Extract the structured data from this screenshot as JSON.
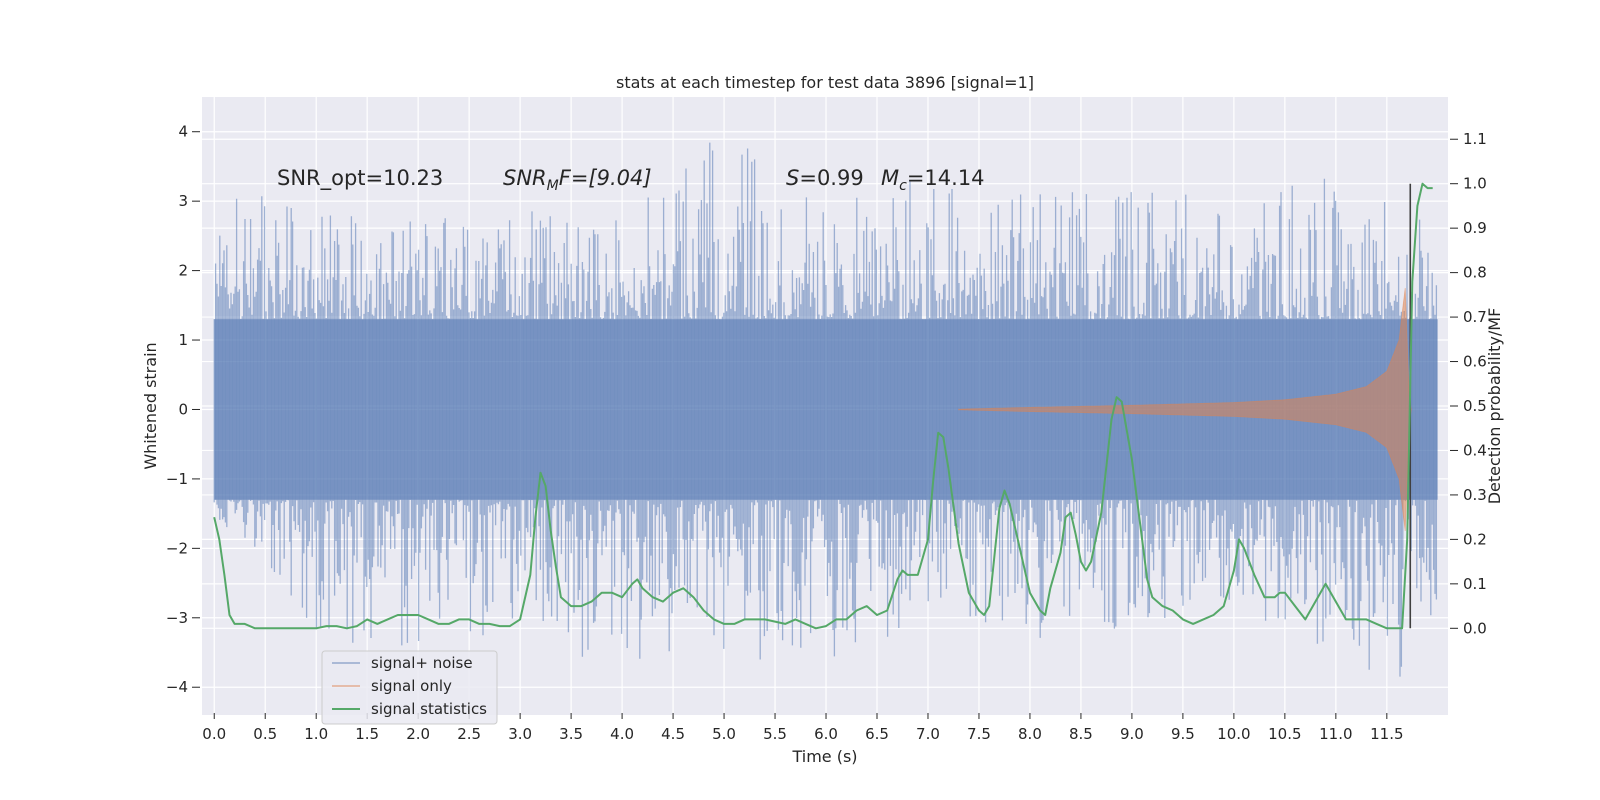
{
  "chart_data": {
    "type": "line",
    "title": "stats at each timestep for test data 3896 [signal=1]",
    "xlabel": "Time (s)",
    "ylabel": "Whitened strain",
    "y2label": "Detection probability/MF",
    "xlim": [
      -0.12,
      12.1
    ],
    "ylim": [
      -4.4,
      4.5
    ],
    "y2lim": [
      -0.195,
      1.195
    ],
    "x_ticks": [
      0.0,
      0.5,
      1.0,
      1.5,
      2.0,
      2.5,
      3.0,
      3.5,
      4.0,
      4.5,
      5.0,
      5.5,
      6.0,
      6.5,
      7.0,
      7.5,
      8.0,
      8.5,
      9.0,
      9.5,
      10.0,
      10.5,
      11.0,
      11.5
    ],
    "x_tick_labels": [
      "0.0",
      "0.5",
      "1.0",
      "1.5",
      "2.0",
      "2.5",
      "3.0",
      "3.5",
      "4.0",
      "4.5",
      "5.0",
      "5.5",
      "6.0",
      "6.5",
      "7.0",
      "7.5",
      "8.0",
      "8.5",
      "9.0",
      "9.5",
      "10.0",
      "10.5",
      "11.0",
      "11.5"
    ],
    "y_ticks": [
      -4,
      -3,
      -2,
      -1,
      0,
      1,
      2,
      3,
      4
    ],
    "y_tick_labels": [
      "−4",
      "−3",
      "−2",
      "−1",
      "0",
      "1",
      "2",
      "3",
      "4"
    ],
    "y2_ticks": [
      0.0,
      0.1,
      0.2,
      0.3,
      0.4,
      0.5,
      0.6,
      0.7,
      0.8,
      0.9,
      1.0,
      1.1
    ],
    "y2_tick_labels": [
      "0.0",
      "0.1",
      "0.2",
      "0.3",
      "0.4",
      "0.5",
      "0.6",
      "0.7",
      "0.8",
      "0.9",
      "1.0",
      "1.1"
    ],
    "grid": true,
    "legend_position": "lower-left",
    "annotations": {
      "snr_opt": "SNR_opt=10.23",
      "snr_mf_main": "SNR",
      "snr_mf_sub": "M",
      "snr_mf_rest": "F=[9.04]",
      "s_main": "S",
      "s_rest": "=0.99",
      "mc_main": "M",
      "mc_sub": "c",
      "mc_rest": "=14.14"
    },
    "series": [
      {
        "name": "signal+ noise",
        "color": "#4c72b0",
        "x_range": [
          0.0,
          12.0
        ],
        "envelope_points": [
          {
            "x": 0.0,
            "max": 3.3,
            "min": -1.5
          },
          {
            "x": 1.2,
            "max": 2.8,
            "min": -3.6
          },
          {
            "x": 3.0,
            "max": 2.9,
            "min": -3.2
          },
          {
            "x": 3.8,
            "max": 2.6,
            "min": -3.9
          },
          {
            "x": 5.0,
            "max": 4.1,
            "min": -3.5
          },
          {
            "x": 6.0,
            "max": 3.0,
            "min": -3.9
          },
          {
            "x": 7.0,
            "max": 3.4,
            "min": -2.9
          },
          {
            "x": 8.0,
            "max": 3.1,
            "min": -3.3
          },
          {
            "x": 9.0,
            "max": 3.3,
            "min": -3.2
          },
          {
            "x": 10.0,
            "max": 3.0,
            "min": -3.1
          },
          {
            "x": 11.0,
            "max": 3.4,
            "min": -3.5
          },
          {
            "x": 11.6,
            "max": 2.9,
            "min": -4.0
          },
          {
            "x": 12.0,
            "max": 2.8,
            "min": -2.8
          }
        ]
      },
      {
        "name": "signal only",
        "color": "#dd8452",
        "envelope_points": [
          {
            "x": 7.3,
            "amp": 0.005
          },
          {
            "x": 8.0,
            "amp": 0.03
          },
          {
            "x": 9.0,
            "amp": 0.06
          },
          {
            "x": 10.0,
            "amp": 0.1
          },
          {
            "x": 10.5,
            "amp": 0.14
          },
          {
            "x": 11.0,
            "amp": 0.22
          },
          {
            "x": 11.3,
            "amp": 0.33
          },
          {
            "x": 11.5,
            "amp": 0.55
          },
          {
            "x": 11.62,
            "amp": 1.0
          },
          {
            "x": 11.68,
            "amp": 1.75
          },
          {
            "x": 11.72,
            "amp": 0.2
          },
          {
            "x": 11.74,
            "amp": 0.0
          }
        ]
      },
      {
        "name": "signal statistics",
        "color": "#55a868",
        "axis": "right",
        "x": [
          0.0,
          0.05,
          0.1,
          0.15,
          0.2,
          0.3,
          0.4,
          0.5,
          0.6,
          0.7,
          0.8,
          0.9,
          1.0,
          1.1,
          1.2,
          1.3,
          1.4,
          1.5,
          1.6,
          1.7,
          1.8,
          1.9,
          2.0,
          2.1,
          2.2,
          2.3,
          2.4,
          2.5,
          2.6,
          2.7,
          2.8,
          2.9,
          3.0,
          3.1,
          3.15,
          3.2,
          3.25,
          3.3,
          3.35,
          3.4,
          3.5,
          3.6,
          3.7,
          3.8,
          3.9,
          4.0,
          4.1,
          4.15,
          4.2,
          4.3,
          4.4,
          4.5,
          4.6,
          4.7,
          4.8,
          4.9,
          5.0,
          5.1,
          5.2,
          5.3,
          5.4,
          5.5,
          5.6,
          5.7,
          5.8,
          5.9,
          6.0,
          6.1,
          6.2,
          6.3,
          6.4,
          6.5,
          6.6,
          6.7,
          6.75,
          6.8,
          6.9,
          7.0,
          7.05,
          7.1,
          7.15,
          7.2,
          7.3,
          7.4,
          7.5,
          7.55,
          7.6,
          7.65,
          7.7,
          7.75,
          7.8,
          7.9,
          8.0,
          8.1,
          8.15,
          8.2,
          8.3,
          8.35,
          8.4,
          8.45,
          8.5,
          8.55,
          8.6,
          8.7,
          8.8,
          8.85,
          8.9,
          9.0,
          9.1,
          9.15,
          9.2,
          9.3,
          9.4,
          9.5,
          9.6,
          9.7,
          9.8,
          9.9,
          10.0,
          10.05,
          10.1,
          10.2,
          10.3,
          10.4,
          10.45,
          10.5,
          10.6,
          10.7,
          10.8,
          10.9,
          11.0,
          11.1,
          11.2,
          11.3,
          11.4,
          11.5,
          11.6,
          11.65,
          11.7,
          11.75,
          11.8,
          11.85,
          11.9,
          11.95
        ],
        "values": [
          0.25,
          0.2,
          0.12,
          0.03,
          0.01,
          0.01,
          0.0,
          0.0,
          0.0,
          0.0,
          0.0,
          0.0,
          0.0,
          0.005,
          0.005,
          0.0,
          0.005,
          0.02,
          0.01,
          0.02,
          0.03,
          0.03,
          0.03,
          0.02,
          0.01,
          0.01,
          0.02,
          0.02,
          0.01,
          0.01,
          0.005,
          0.005,
          0.02,
          0.12,
          0.25,
          0.35,
          0.32,
          0.22,
          0.14,
          0.07,
          0.05,
          0.05,
          0.06,
          0.08,
          0.08,
          0.07,
          0.1,
          0.11,
          0.09,
          0.07,
          0.06,
          0.08,
          0.09,
          0.07,
          0.04,
          0.02,
          0.01,
          0.01,
          0.02,
          0.02,
          0.02,
          0.015,
          0.01,
          0.02,
          0.01,
          0.0,
          0.005,
          0.02,
          0.02,
          0.04,
          0.05,
          0.03,
          0.04,
          0.11,
          0.13,
          0.12,
          0.12,
          0.2,
          0.33,
          0.44,
          0.43,
          0.36,
          0.19,
          0.08,
          0.04,
          0.03,
          0.05,
          0.16,
          0.27,
          0.31,
          0.28,
          0.18,
          0.08,
          0.04,
          0.03,
          0.09,
          0.17,
          0.25,
          0.26,
          0.21,
          0.15,
          0.13,
          0.15,
          0.26,
          0.47,
          0.52,
          0.51,
          0.38,
          0.2,
          0.11,
          0.07,
          0.05,
          0.04,
          0.02,
          0.01,
          0.02,
          0.03,
          0.05,
          0.13,
          0.2,
          0.18,
          0.12,
          0.07,
          0.07,
          0.08,
          0.08,
          0.05,
          0.02,
          0.06,
          0.1,
          0.06,
          0.02,
          0.02,
          0.02,
          0.01,
          0.0,
          0.0,
          0.0,
          0.2,
          0.78,
          0.95,
          1.0,
          0.99,
          0.99
        ]
      }
    ],
    "vertical_markers": [
      {
        "x": 11.73,
        "ymin": 0.0,
        "ymax": 1.0,
        "axis": "right",
        "color": "#404040"
      }
    ]
  }
}
